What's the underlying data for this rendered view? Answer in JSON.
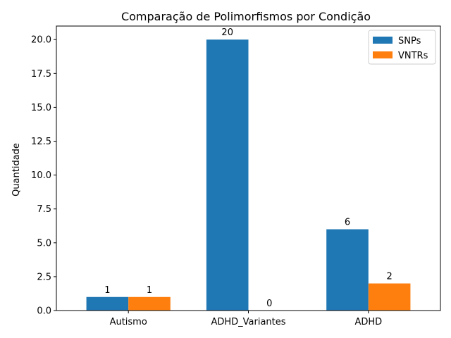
{
  "chart_data": {
    "type": "bar",
    "title": "Comparação de Polimorfismos por Condição",
    "xlabel": "",
    "ylabel": "Quantidade",
    "categories": [
      "Autismo",
      "ADHD_Variantes",
      "ADHD"
    ],
    "series": [
      {
        "name": "SNPs",
        "values": [
          1,
          20,
          6
        ],
        "color": "#1f77b4"
      },
      {
        "name": "VNTRs",
        "values": [
          1,
          0,
          2
        ],
        "color": "#ff7f0e"
      }
    ],
    "ylim": [
      0,
      21
    ],
    "yticks": [
      "0.0",
      "2.5",
      "5.0",
      "7.5",
      "10.0",
      "12.5",
      "15.0",
      "17.5",
      "20.0"
    ],
    "data_labels": [
      [
        "1",
        "20",
        "6"
      ],
      [
        "1",
        "0",
        "2"
      ]
    ],
    "legend_position": "top-right",
    "grid": false
  }
}
